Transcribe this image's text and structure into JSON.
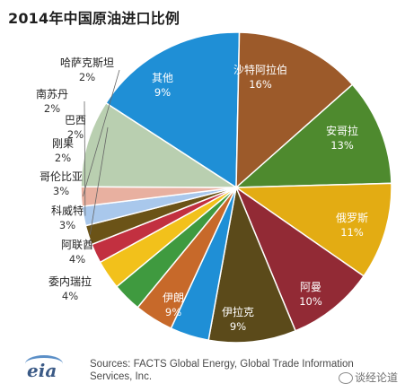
{
  "title": "2014年中国原油进口比例",
  "source": "Sources: FACTS Global Energy, Global Trade Information Services, Inc.",
  "logo_text": "eia",
  "watermark": "谈经论道",
  "chart_data": {
    "type": "pie",
    "title": "2014年中国原油进口比例",
    "unit": "%",
    "slices": [
      {
        "name": "沙特阿拉伯",
        "value": 16,
        "color": "#1f8fd6"
      },
      {
        "name": "安哥拉",
        "value": 13,
        "color": "#9c5a2a"
      },
      {
        "name": "俄罗斯",
        "value": 11,
        "color": "#4e8a2e"
      },
      {
        "name": "阿曼",
        "value": 10,
        "color": "#e3ac13"
      },
      {
        "name": "伊拉克",
        "value": 9,
        "color": "#922a35"
      },
      {
        "name": "伊朗",
        "value": 9,
        "color": "#5b4a1a"
      },
      {
        "name": "委内瑞拉",
        "value": 4,
        "color": "#1f8fd6"
      },
      {
        "name": "阿联酋",
        "value": 4,
        "color": "#c7692a"
      },
      {
        "name": "科威特",
        "value": 3,
        "color": "#3f9a3f"
      },
      {
        "name": "哥伦比亚",
        "value": 3,
        "color": "#f2c11b"
      },
      {
        "name": "刚果",
        "value": 2,
        "color": "#c23040"
      },
      {
        "name": "巴西",
        "value": 2,
        "color": "#6b5317"
      },
      {
        "name": "南苏丹",
        "value": 2,
        "color": "#a9c8ec"
      },
      {
        "name": "哈萨克斯坦",
        "value": 2,
        "color": "#e8b0a0"
      },
      {
        "name": "其他",
        "value": 9,
        "color": "#b9cfb0"
      }
    ]
  }
}
